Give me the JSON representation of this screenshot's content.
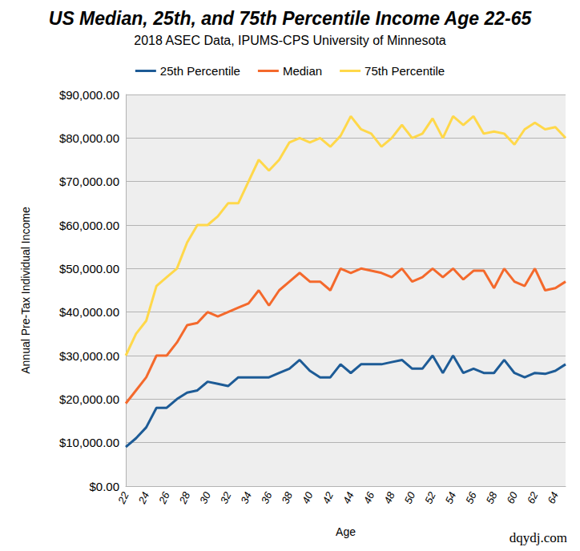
{
  "chart_data": {
    "type": "line",
    "title": "US Median, 25th, and 75th Percentile Income Age 22-65",
    "subtitle": "2018 ASEC Data, IPUMS-CPS University of Minnesota",
    "x_label": "Age",
    "y_label": "Annual Pre-Tax Individual Income",
    "annotation": "dqydj.com",
    "categories": [
      "22",
      null,
      "24",
      null,
      "26",
      null,
      "28",
      null,
      "30",
      null,
      "32",
      null,
      "34",
      null,
      "36",
      null,
      "38",
      null,
      "40",
      null,
      "42",
      null,
      "44",
      null,
      "46",
      null,
      "48",
      null,
      "50",
      null,
      "52",
      null,
      "54",
      null,
      "56",
      null,
      "58",
      null,
      "60",
      null,
      "62",
      null,
      "64",
      null
    ],
    "series": [
      {
        "name": "25th Percentile",
        "color": "#1d5b96",
        "values": [
          9000,
          11000,
          13500,
          18000,
          18000,
          20000,
          21500,
          22000,
          24000,
          23500,
          23000,
          25000,
          25000,
          25000,
          25000,
          26000,
          27000,
          29000,
          26500,
          25000,
          25000,
          28000,
          26000,
          28000,
          28000,
          28000,
          28500,
          29000,
          27000,
          27000,
          30000,
          26000,
          30000,
          26000,
          27000,
          26000,
          26000,
          29000,
          26000,
          25000,
          26000,
          25800,
          26500,
          28000
        ]
      },
      {
        "name": "Median",
        "color": "#f4692c",
        "values": [
          19000,
          22000,
          25000,
          30000,
          30000,
          33000,
          37000,
          37500,
          40000,
          39000,
          40000,
          41000,
          42000,
          45000,
          41500,
          45000,
          47000,
          49000,
          47000,
          47000,
          45000,
          50000,
          49000,
          50000,
          49500,
          49000,
          48000,
          50000,
          47000,
          48000,
          50000,
          48000,
          50000,
          47500,
          49500,
          49500,
          45500,
          50000,
          47000,
          46000,
          50000,
          45000,
          45500,
          47000
        ]
      },
      {
        "name": "75th Percentile",
        "color": "#ffd84a",
        "values": [
          30000,
          35000,
          38000,
          46000,
          48000,
          50000,
          56000,
          60000,
          60000,
          62000,
          65000,
          65000,
          70000,
          75000,
          72500,
          75000,
          79000,
          80000,
          79000,
          80000,
          78000,
          80500,
          85000,
          82000,
          81000,
          78000,
          80000,
          83000,
          80000,
          81000,
          84500,
          80000,
          85000,
          83000,
          85000,
          81000,
          81500,
          81000,
          78500,
          82000,
          83500,
          82000,
          82500,
          80000
        ]
      }
    ],
    "ylim": [
      0,
      90000
    ],
    "yticks": [
      {
        "value": 0,
        "label": "$0.00"
      },
      {
        "value": 10000,
        "label": "$10,000.00"
      },
      {
        "value": 20000,
        "label": "$20,000.00"
      },
      {
        "value": 30000,
        "label": "$30,000.00"
      },
      {
        "value": 40000,
        "label": "$40,000.00"
      },
      {
        "value": 50000,
        "label": "$50,000.00"
      },
      {
        "value": 60000,
        "label": "$60,000.00"
      },
      {
        "value": 70000,
        "label": "$70,000.00"
      },
      {
        "value": 80000,
        "label": "$80,000.00"
      },
      {
        "value": 90000,
        "label": "$90,000.00"
      }
    ],
    "grid": true,
    "legend": "top"
  }
}
